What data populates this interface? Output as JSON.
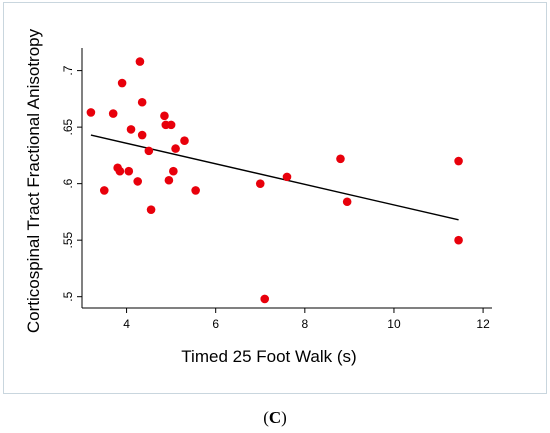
{
  "chart_data": {
    "type": "scatter",
    "title": "",
    "xlabel": "Timed 25 Foot Walk (s)",
    "ylabel": "Corticospinal Tract Fractional Anisotropy",
    "xlim": [
      3,
      12.2
    ],
    "ylim": [
      0.49,
      0.72
    ],
    "xticks": [
      4,
      6,
      8,
      10,
      12
    ],
    "xtick_labels": [
      "4",
      "6",
      "8",
      "10",
      "12"
    ],
    "yticks": [
      0.5,
      0.55,
      0.6,
      0.65,
      0.7
    ],
    "ytick_labels": [
      ".5",
      ".55",
      ".6",
      ".65",
      ".7"
    ],
    "grid": false,
    "legend": "none",
    "marker_color": "#e8000b",
    "line_color": "#000000",
    "points": [
      {
        "x": 3.2,
        "y": 0.663
      },
      {
        "x": 3.5,
        "y": 0.594
      },
      {
        "x": 3.7,
        "y": 0.662
      },
      {
        "x": 3.8,
        "y": 0.614
      },
      {
        "x": 3.85,
        "y": 0.611
      },
      {
        "x": 3.9,
        "y": 0.689
      },
      {
        "x": 4.05,
        "y": 0.611
      },
      {
        "x": 4.1,
        "y": 0.648
      },
      {
        "x": 4.25,
        "y": 0.602
      },
      {
        "x": 4.3,
        "y": 0.708
      },
      {
        "x": 4.35,
        "y": 0.672
      },
      {
        "x": 4.35,
        "y": 0.643
      },
      {
        "x": 4.5,
        "y": 0.629
      },
      {
        "x": 4.55,
        "y": 0.577
      },
      {
        "x": 4.85,
        "y": 0.66
      },
      {
        "x": 4.88,
        "y": 0.652
      },
      {
        "x": 4.95,
        "y": 0.603
      },
      {
        "x": 5.0,
        "y": 0.652
      },
      {
        "x": 5.05,
        "y": 0.611
      },
      {
        "x": 5.1,
        "y": 0.631
      },
      {
        "x": 5.3,
        "y": 0.638
      },
      {
        "x": 5.55,
        "y": 0.594
      },
      {
        "x": 7.0,
        "y": 0.6
      },
      {
        "x": 7.1,
        "y": 0.498
      },
      {
        "x": 7.6,
        "y": 0.606
      },
      {
        "x": 8.8,
        "y": 0.622
      },
      {
        "x": 8.95,
        "y": 0.584
      },
      {
        "x": 11.45,
        "y": 0.62
      },
      {
        "x": 11.45,
        "y": 0.55
      }
    ],
    "fit_line": {
      "x": [
        3.2,
        11.45
      ],
      "y": [
        0.643,
        0.568
      ]
    }
  },
  "caption": {
    "open": "(",
    "letter": "C",
    "close": ")"
  }
}
